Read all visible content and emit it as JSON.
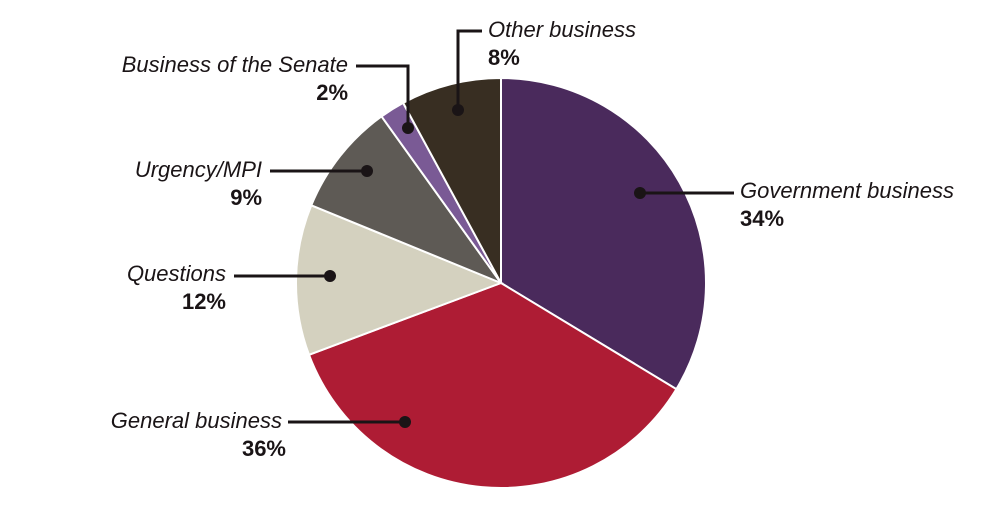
{
  "chart_data": {
    "type": "pie",
    "slices": [
      {
        "name": "Government business",
        "value": 34,
        "label": "34%",
        "color": "#4a2a5c"
      },
      {
        "name": "General business",
        "value": 36,
        "label": "36%",
        "color": "#ae1c34"
      },
      {
        "name": "Questions",
        "value": 12,
        "label": "12%",
        "color": "#d4d1bf"
      },
      {
        "name": "Urgency/MPI",
        "value": 9,
        "label": "9%",
        "color": "#5e5a55"
      },
      {
        "name": "Business of the Senate",
        "value": 2,
        "label": "2%",
        "color": "#7a5a95"
      },
      {
        "name": "Other business",
        "value": 8,
        "label": "8%",
        "color": "#382e22"
      }
    ],
    "start": "12 o'clock",
    "direction": "clockwise",
    "legend": "none (direct labels with leader lines)"
  }
}
